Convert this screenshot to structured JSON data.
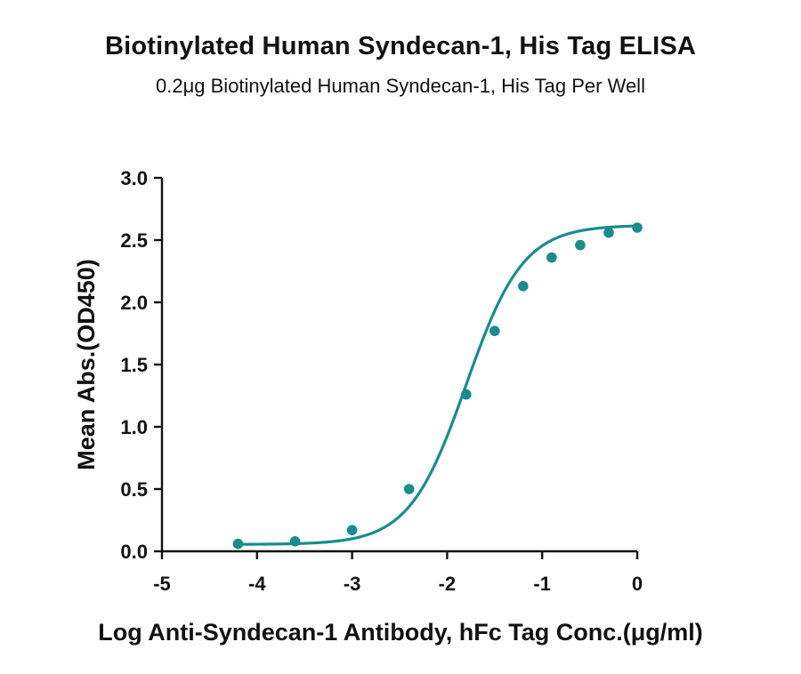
{
  "chart_data": {
    "type": "scatter",
    "title": "Biotinylated Human Syndecan-1, His Tag ELISA",
    "subtitle": "0.2μg Biotinylated Human Syndecan-1, His Tag Per Well",
    "xlabel": "Log Anti-Syndecan-1 Antibody, hFc Tag Conc.(μg/ml)",
    "ylabel": "Mean Abs.(OD450)",
    "xlim": [
      -5,
      0
    ],
    "ylim": [
      0,
      3.0
    ],
    "xticks": [
      "-5",
      "-4",
      "-3",
      "-2",
      "-1",
      "0"
    ],
    "yticks": [
      "0.0",
      "0.5",
      "1.0",
      "1.5",
      "2.0",
      "2.5",
      "3.0"
    ],
    "grid": false,
    "color": "#1a8c8c",
    "series": [
      {
        "x": [
          -4.2,
          -3.6,
          -3.0,
          -2.4,
          -1.8,
          -1.5,
          -1.2,
          -0.9,
          -0.6,
          -0.3,
          0.0
        ],
        "y": [
          0.06,
          0.08,
          0.17,
          0.5,
          1.26,
          1.77,
          2.13,
          2.36,
          2.46,
          2.56,
          2.6
        ],
        "fit": "4PL sigmoid"
      }
    ]
  }
}
